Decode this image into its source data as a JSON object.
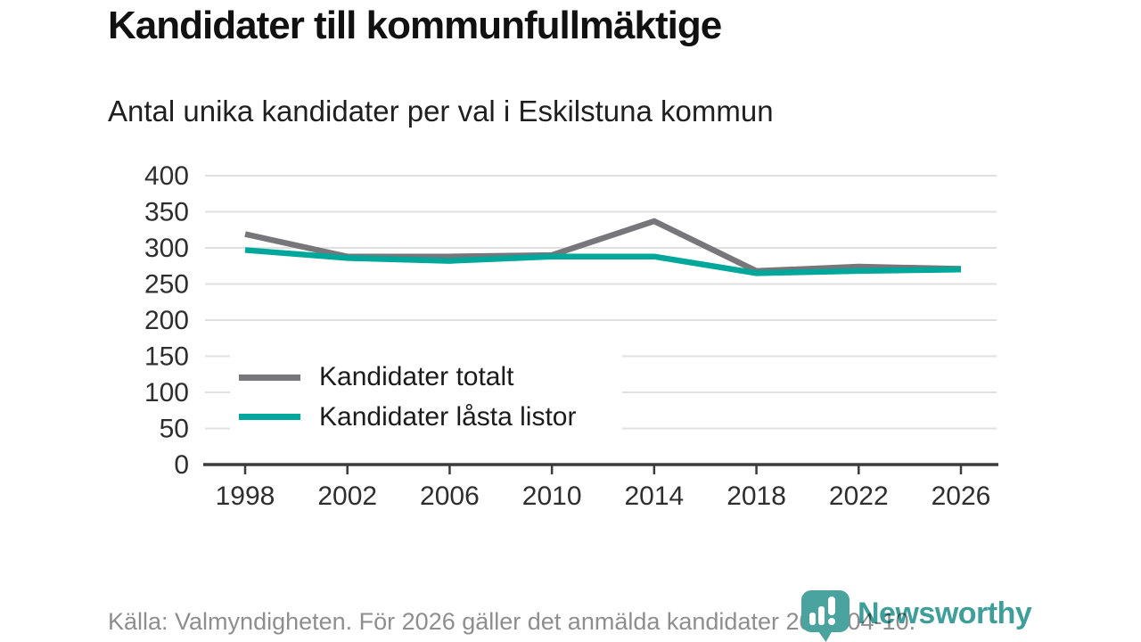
{
  "header": {
    "title": "Kandidater till kommunfullmäktige",
    "subtitle": "Antal unika kandidater per val i Eskilstuna kommun"
  },
  "chart_data": {
    "type": "line",
    "x": [
      1998,
      2002,
      2006,
      2010,
      2014,
      2018,
      2022,
      2026
    ],
    "series": [
      {
        "name": "Kandidater totalt",
        "color": "#77767B",
        "values": [
          319,
          288,
          288,
          290,
          337,
          268,
          274,
          271
        ]
      },
      {
        "name": "Kandidater låsta listor",
        "color": "#00A79B",
        "values": [
          297,
          286,
          282,
          288,
          288,
          265,
          268,
          270
        ]
      }
    ],
    "ylim": [
      0,
      400
    ],
    "ytick_step": 50,
    "grid": true,
    "legend_position": "inside-bottom-left",
    "xlabel": "",
    "ylabel": ""
  },
  "colors": {
    "grid": "#e0e0e0",
    "axis": "#3b3b3b",
    "tick_text": "#2e2e2e",
    "footer_text": "#8e8e8e",
    "logo_teal": "#3D9E9A",
    "logo_icon_teal": "#4BA3A0"
  },
  "footer": {
    "source_text": "Källa: Valmyndigheten. För 2026 gäller det anmälda kandidater 2026-04-10."
  },
  "branding": {
    "wordmark": "Newsworthy",
    "icon": "newsworthy-chart-bubble-icon"
  }
}
